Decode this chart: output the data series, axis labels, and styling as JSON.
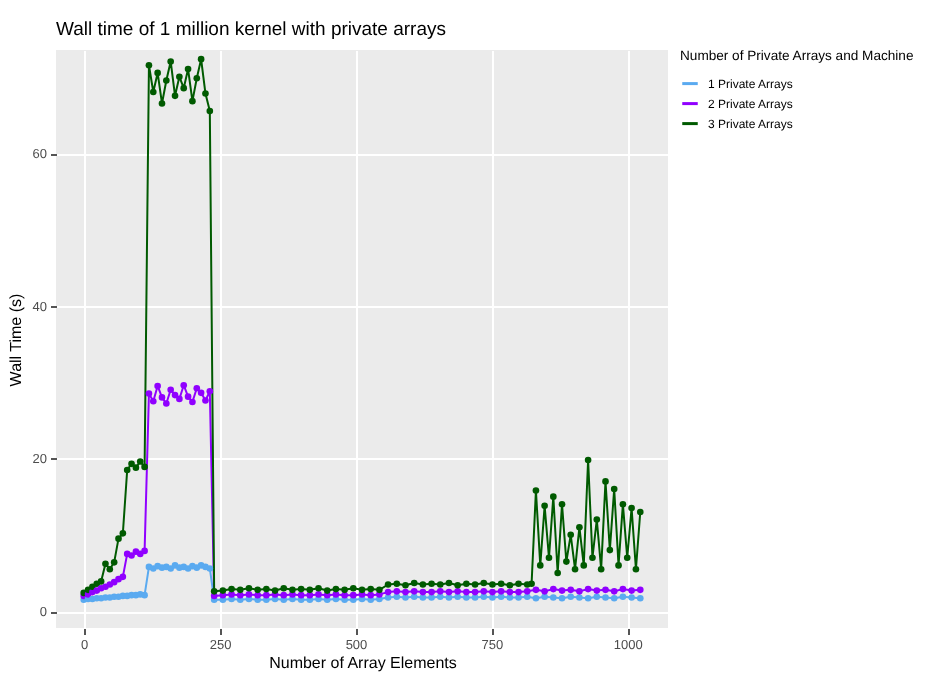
{
  "chart_data": {
    "type": "line",
    "title": "Wall time of 1 million kernel with private arrays",
    "xlabel": "Number of Array Elements",
    "ylabel": "Wall Time (s)",
    "legend_title": "Number of Private Arrays and Machine",
    "x": [
      0,
      8,
      16,
      24,
      32,
      40,
      48,
      56,
      64,
      72,
      80,
      88,
      96,
      104,
      112,
      120,
      128,
      136,
      144,
      152,
      160,
      168,
      176,
      184,
      192,
      200,
      208,
      216,
      224,
      232,
      240,
      256,
      272,
      288,
      304,
      320,
      336,
      352,
      368,
      384,
      400,
      416,
      432,
      448,
      464,
      480,
      496,
      512,
      528,
      544,
      560,
      576,
      592,
      608,
      624,
      640,
      656,
      672,
      688,
      704,
      720,
      736,
      752,
      768,
      784,
      800,
      816,
      824,
      832,
      840,
      848,
      856,
      864,
      872,
      880,
      888,
      896,
      904,
      912,
      920,
      928,
      936,
      944,
      952,
      960,
      968,
      976,
      984,
      992,
      1000,
      1008,
      1016,
      1024
    ],
    "series": [
      {
        "name": "1 Private Arrays",
        "color": "#5aaaf0",
        "x": [
          0,
          8,
          16,
          24,
          32,
          40,
          48,
          56,
          64,
          72,
          80,
          88,
          96,
          104,
          112,
          120,
          128,
          136,
          144,
          152,
          160,
          168,
          176,
          184,
          192,
          200,
          208,
          216,
          224,
          232,
          240,
          256,
          272,
          288,
          304,
          320,
          336,
          352,
          368,
          384,
          400,
          416,
          432,
          448,
          464,
          480,
          496,
          512,
          528,
          544,
          560,
          576,
          592,
          608,
          624,
          640,
          656,
          672,
          688,
          704,
          720,
          736,
          752,
          768,
          784,
          800,
          816,
          832,
          848,
          864,
          880,
          896,
          912,
          928,
          944,
          960,
          976,
          992,
          1008,
          1024
        ],
        "values": [
          1.5,
          1.6,
          1.6,
          1.7,
          1.7,
          1.8,
          1.8,
          1.9,
          1.9,
          2.0,
          2.0,
          2.1,
          2.1,
          2.2,
          2.1,
          5.8,
          5.6,
          5.9,
          5.7,
          5.8,
          5.6,
          6.0,
          5.7,
          5.8,
          5.6,
          5.9,
          5.7,
          6.0,
          5.8,
          5.6,
          1.5,
          1.5,
          1.6,
          1.5,
          1.6,
          1.5,
          1.5,
          1.6,
          1.5,
          1.6,
          1.5,
          1.5,
          1.6,
          1.5,
          1.6,
          1.5,
          1.5,
          1.6,
          1.5,
          1.6,
          1.8,
          1.9,
          1.8,
          1.9,
          1.8,
          1.8,
          1.9,
          1.8,
          1.9,
          1.8,
          1.8,
          1.9,
          1.8,
          1.9,
          1.8,
          1.8,
          1.9,
          1.7,
          1.9,
          1.8,
          1.7,
          1.9,
          1.8,
          1.7,
          1.9,
          1.8,
          1.7,
          1.9,
          1.8,
          1.7
        ]
      },
      {
        "name": "2 Private Arrays",
        "color": "#9000ff",
        "x": [
          0,
          8,
          16,
          24,
          32,
          40,
          48,
          56,
          64,
          72,
          80,
          88,
          96,
          104,
          112,
          120,
          128,
          136,
          144,
          152,
          160,
          168,
          176,
          184,
          192,
          200,
          208,
          216,
          224,
          232,
          240,
          256,
          272,
          288,
          304,
          320,
          336,
          352,
          368,
          384,
          400,
          416,
          432,
          448,
          464,
          480,
          496,
          512,
          528,
          544,
          560,
          576,
          592,
          608,
          624,
          640,
          656,
          672,
          688,
          704,
          720,
          736,
          752,
          768,
          784,
          800,
          816,
          832,
          848,
          864,
          880,
          896,
          912,
          928,
          944,
          960,
          976,
          992,
          1008,
          1024
        ],
        "values": [
          2.0,
          2.2,
          2.5,
          2.7,
          3.0,
          3.2,
          3.5,
          3.8,
          4.2,
          4.5,
          7.5,
          7.3,
          7.8,
          7.5,
          7.9,
          28.5,
          27.5,
          29.5,
          28.0,
          27.2,
          29.0,
          28.3,
          27.8,
          29.6,
          28.1,
          27.4,
          29.2,
          28.6,
          27.6,
          28.8,
          2.0,
          2.1,
          2.2,
          2.1,
          2.2,
          2.1,
          2.1,
          2.2,
          2.1,
          2.2,
          2.1,
          2.1,
          2.2,
          2.1,
          2.2,
          2.1,
          2.1,
          2.2,
          2.1,
          2.2,
          2.5,
          2.6,
          2.5,
          2.6,
          2.5,
          2.5,
          2.6,
          2.5,
          2.6,
          2.5,
          2.5,
          2.6,
          2.5,
          2.6,
          2.5,
          2.5,
          2.6,
          2.8,
          2.6,
          2.9,
          2.7,
          2.8,
          2.6,
          2.9,
          2.7,
          2.8,
          2.6,
          2.9,
          2.7,
          2.8
        ]
      },
      {
        "name": "3 Private Arrays",
        "color": "#005a00",
        "values": [
          2.4,
          2.8,
          3.2,
          3.6,
          3.9,
          6.2,
          5.5,
          6.4,
          9.5,
          10.2,
          18.5,
          19.3,
          18.8,
          19.6,
          18.9,
          71.5,
          68.0,
          70.5,
          66.5,
          69.5,
          72.0,
          67.5,
          70.0,
          68.5,
          71.0,
          66.8,
          69.8,
          72.3,
          67.8,
          65.5,
          2.6,
          2.7,
          2.9,
          2.8,
          3.0,
          2.8,
          2.9,
          2.7,
          3.0,
          2.8,
          2.9,
          2.8,
          3.0,
          2.7,
          2.9,
          2.8,
          3.0,
          2.8,
          2.9,
          2.8,
          3.5,
          3.6,
          3.4,
          3.7,
          3.5,
          3.6,
          3.5,
          3.7,
          3.4,
          3.6,
          3.5,
          3.7,
          3.5,
          3.6,
          3.4,
          3.6,
          3.5,
          3.6,
          15.8,
          6.0,
          13.8,
          7.0,
          15.0,
          5.0,
          14.0,
          6.5,
          10.0,
          5.5,
          11.0,
          6.0,
          19.8,
          7.0,
          12.0,
          5.5,
          17.0,
          8.0,
          16.0,
          6.0,
          14.0,
          7.0,
          13.5,
          5.5,
          13.0
        ]
      }
    ],
    "xlim": [
      -51,
      1075
    ],
    "ylim": [
      -2.2,
      73.5
    ],
    "xticks": [
      0,
      250,
      500,
      750,
      1000
    ],
    "yticks": [
      0,
      20,
      40,
      60
    ],
    "grid": true,
    "legend": "right",
    "marker": "circle",
    "line_style": "solid"
  }
}
